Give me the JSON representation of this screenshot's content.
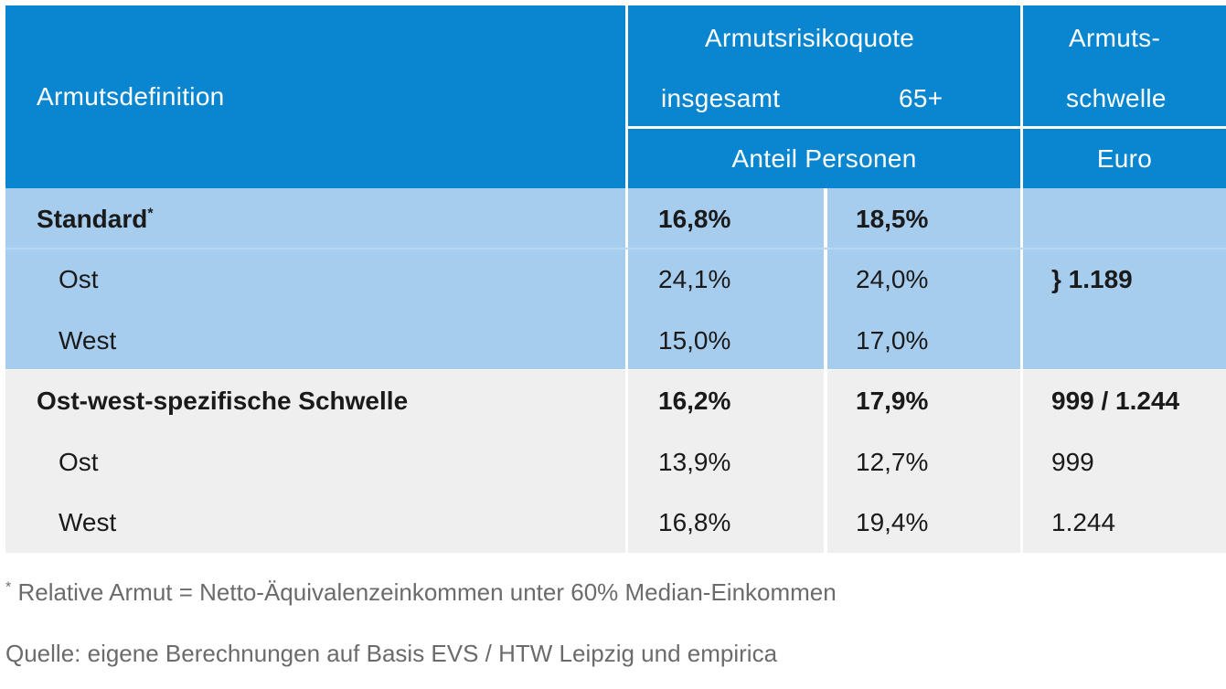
{
  "header": {
    "armutsdefinition": "Armutsdefinition",
    "armutsrisikoquote": "Armutsrisikoquote",
    "insgesamt": "insgesamt",
    "age_65": "65+",
    "armuts_line1": "Armuts-",
    "armuts_line2": "schwelle",
    "anteil_personen": "Anteil Personen",
    "euro": "Euro"
  },
  "groups": [
    {
      "label": "Standard",
      "label_mark": "*",
      "insgesamt": "16,8%",
      "age_65": "18,5%",
      "schwelle": "",
      "rows": [
        {
          "label": "Ost",
          "insgesamt": "24,1%",
          "age_65": "24,0%",
          "schwelle": "} 1.189"
        },
        {
          "label": "West",
          "insgesamt": "15,0%",
          "age_65": "17,0%",
          "schwelle": ""
        }
      ]
    },
    {
      "label": "Ost-west-spezifische Schwelle",
      "insgesamt": "16,2%",
      "age_65": "17,9%",
      "schwelle": "999 / 1.244",
      "rows": [
        {
          "label": "Ost",
          "insgesamt": "13,9%",
          "age_65": "12,7%",
          "schwelle": "999"
        },
        {
          "label": "West",
          "insgesamt": "16,8%",
          "age_65": "19,4%",
          "schwelle": "1.244"
        }
      ]
    }
  ],
  "footnote": {
    "mark": "*",
    "text": " Relative Armut = Netto-Äquivalenzeinkommen unter 60% Median-Einkommen"
  },
  "source": "Quelle: eigene Berechnungen auf Basis EVS / HTW Leipzig und empirica",
  "colors": {
    "header_bg": "#0a86d0",
    "standard_bg": "#a7cdee",
    "ostwest_bg": "#efefef"
  }
}
